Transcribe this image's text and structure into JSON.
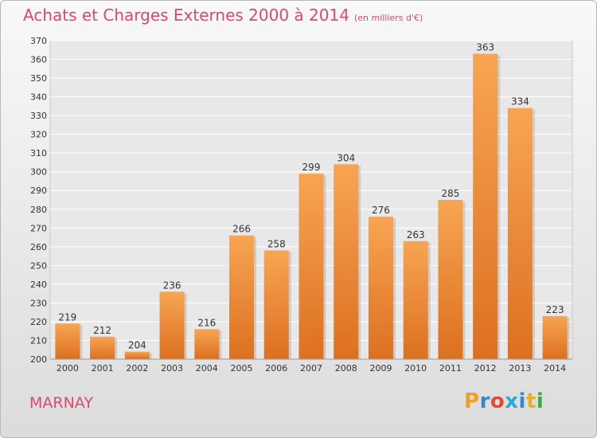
{
  "chart_data": {
    "type": "bar",
    "title": "Achats et Charges Externes 2000 à 2014",
    "subtitle": "(en milliers d'€)",
    "xlabel": "",
    "ylabel": "",
    "categories": [
      "2000",
      "2001",
      "2002",
      "2003",
      "2004",
      "2005",
      "2006",
      "2007",
      "2008",
      "2009",
      "2010",
      "2011",
      "2012",
      "2013",
      "2014"
    ],
    "values": [
      219,
      212,
      204,
      236,
      216,
      266,
      258,
      299,
      304,
      276,
      263,
      285,
      363,
      334,
      223
    ],
    "ylim": [
      200,
      370
    ],
    "ytick_step": 10,
    "grid": true,
    "data_labels": true,
    "bar_color": "#f0913a"
  },
  "footer": {
    "place": "MARNAY",
    "logo_letters": [
      "P",
      "r",
      "o",
      "x",
      "i",
      "t",
      "i"
    ],
    "logo_colors": [
      "#f0a020",
      "#3a88c8",
      "#e84a3a",
      "#2aa8d8",
      "#3a88c8",
      "#e8b020",
      "#3aa84a"
    ]
  }
}
